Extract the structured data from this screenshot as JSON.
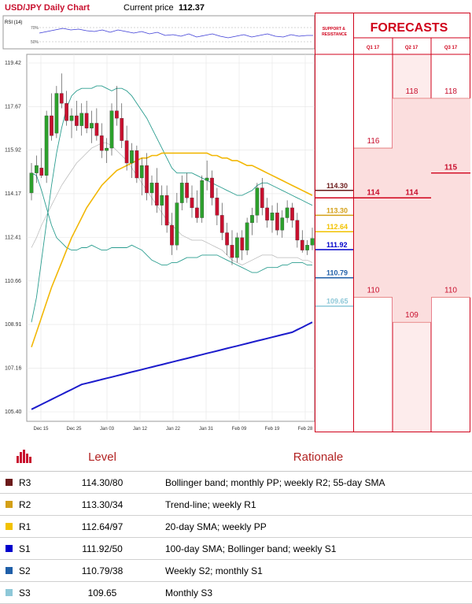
{
  "header": {
    "title": "USD/JPY Daily Chart",
    "price_label": "Current price",
    "price": "112.37"
  },
  "rsi": {
    "label": "RSI (14)",
    "levels": [
      "70%",
      "50%"
    ]
  },
  "panel": {
    "sr_title": "SUPPORT & RESISTANCE",
    "forecast_title": "FORECASTS",
    "quarters": [
      "Q1 17",
      "Q2 17",
      "Q3 17"
    ]
  },
  "colors": {
    "r3": "#6b1a1a",
    "r2": "#d4a017",
    "r1": "#f2c200",
    "s1": "#0000cc",
    "s2": "#1f5fa8",
    "s3": "#8ec8d8",
    "bull": "#2ca02c",
    "bear": "#c8102e",
    "accent": "#d0021b"
  },
  "chart_data": {
    "type": "candlestick",
    "title": "USD/JPY Daily Chart",
    "ylim": [
      105.4,
      119.42
    ],
    "y_ticks": [
      "119.42",
      "117.67",
      "115.92",
      "114.17",
      "112.41",
      "110.66",
      "108.91",
      "107.16",
      "105.40"
    ],
    "x_ticks": [
      "Dec 15",
      "Dec 25",
      "Jan 03",
      "Jan 12",
      "Jan 22",
      "Jan 31",
      "Feb 09",
      "Feb 19",
      "Feb 28"
    ],
    "candles": [
      {
        "o": 114.2,
        "h": 115.4,
        "l": 113.9,
        "c": 115.0
      },
      {
        "o": 115.0,
        "h": 115.7,
        "l": 114.6,
        "c": 115.3
      },
      {
        "o": 115.2,
        "h": 116.0,
        "l": 114.8,
        "c": 114.9
      },
      {
        "o": 114.9,
        "h": 117.5,
        "l": 114.6,
        "c": 117.3
      },
      {
        "o": 117.3,
        "h": 118.2,
        "l": 116.3,
        "c": 116.5
      },
      {
        "o": 116.6,
        "h": 118.5,
        "l": 116.4,
        "c": 118.2
      },
      {
        "o": 118.2,
        "h": 119.0,
        "l": 117.6,
        "c": 117.8
      },
      {
        "o": 117.8,
        "h": 118.3,
        "l": 116.9,
        "c": 117.1
      },
      {
        "o": 117.1,
        "h": 117.6,
        "l": 116.4,
        "c": 117.3
      },
      {
        "o": 117.3,
        "h": 117.9,
        "l": 116.7,
        "c": 116.9
      },
      {
        "o": 116.9,
        "h": 117.8,
        "l": 116.5,
        "c": 117.4
      },
      {
        "o": 117.4,
        "h": 117.9,
        "l": 116.6,
        "c": 116.8
      },
      {
        "o": 116.8,
        "h": 117.5,
        "l": 116.2,
        "c": 117.0
      },
      {
        "o": 117.0,
        "h": 117.6,
        "l": 116.3,
        "c": 116.5
      },
      {
        "o": 116.5,
        "h": 117.0,
        "l": 115.6,
        "c": 115.9
      },
      {
        "o": 115.9,
        "h": 116.4,
        "l": 115.4,
        "c": 116.0
      },
      {
        "o": 116.0,
        "h": 117.8,
        "l": 115.7,
        "c": 117.5
      },
      {
        "o": 117.5,
        "h": 118.5,
        "l": 116.9,
        "c": 117.2
      },
      {
        "o": 117.2,
        "h": 117.8,
        "l": 116.0,
        "c": 116.3
      },
      {
        "o": 116.3,
        "h": 116.9,
        "l": 115.1,
        "c": 115.4
      },
      {
        "o": 115.4,
        "h": 116.2,
        "l": 114.8,
        "c": 115.9
      },
      {
        "o": 115.9,
        "h": 116.1,
        "l": 114.6,
        "c": 114.8
      },
      {
        "o": 114.8,
        "h": 115.6,
        "l": 114.1,
        "c": 115.3
      },
      {
        "o": 115.3,
        "h": 115.8,
        "l": 113.9,
        "c": 114.2
      },
      {
        "o": 114.2,
        "h": 114.9,
        "l": 113.7,
        "c": 114.6
      },
      {
        "o": 114.6,
        "h": 115.2,
        "l": 113.4,
        "c": 113.7
      },
      {
        "o": 113.7,
        "h": 114.5,
        "l": 112.9,
        "c": 114.1
      },
      {
        "o": 114.1,
        "h": 114.5,
        "l": 112.6,
        "c": 112.9
      },
      {
        "o": 112.9,
        "h": 113.4,
        "l": 111.7,
        "c": 112.1
      },
      {
        "o": 112.1,
        "h": 114.2,
        "l": 111.9,
        "c": 113.8
      },
      {
        "o": 113.8,
        "h": 114.9,
        "l": 113.5,
        "c": 114.6
      },
      {
        "o": 114.6,
        "h": 115.0,
        "l": 113.8,
        "c": 114.0
      },
      {
        "o": 114.0,
        "h": 114.5,
        "l": 113.2,
        "c": 113.6
      },
      {
        "o": 113.6,
        "h": 114.3,
        "l": 113.0,
        "c": 113.2
      },
      {
        "o": 113.2,
        "h": 114.9,
        "l": 113.0,
        "c": 114.7
      },
      {
        "o": 114.7,
        "h": 115.5,
        "l": 114.3,
        "c": 114.8
      },
      {
        "o": 114.8,
        "h": 115.1,
        "l": 113.7,
        "c": 114.0
      },
      {
        "o": 114.0,
        "h": 114.4,
        "l": 112.9,
        "c": 113.3
      },
      {
        "o": 113.3,
        "h": 113.8,
        "l": 112.3,
        "c": 112.6
      },
      {
        "o": 112.6,
        "h": 113.0,
        "l": 111.7,
        "c": 112.1
      },
      {
        "o": 112.1,
        "h": 112.7,
        "l": 111.3,
        "c": 111.6
      },
      {
        "o": 111.6,
        "h": 112.6,
        "l": 111.4,
        "c": 112.4
      },
      {
        "o": 112.4,
        "h": 112.7,
        "l": 111.5,
        "c": 111.9
      },
      {
        "o": 111.9,
        "h": 113.2,
        "l": 111.7,
        "c": 113.0
      },
      {
        "o": 113.0,
        "h": 113.6,
        "l": 112.5,
        "c": 113.3
      },
      {
        "o": 113.3,
        "h": 114.6,
        "l": 113.0,
        "c": 114.4
      },
      {
        "o": 114.4,
        "h": 114.8,
        "l": 113.3,
        "c": 113.6
      },
      {
        "o": 113.6,
        "h": 114.0,
        "l": 112.8,
        "c": 113.1
      },
      {
        "o": 113.1,
        "h": 113.7,
        "l": 112.6,
        "c": 113.4
      },
      {
        "o": 113.4,
        "h": 113.8,
        "l": 112.5,
        "c": 112.7
      },
      {
        "o": 112.7,
        "h": 113.5,
        "l": 112.4,
        "c": 113.2
      },
      {
        "o": 113.2,
        "h": 113.9,
        "l": 113.0,
        "c": 113.6
      },
      {
        "o": 113.6,
        "h": 113.8,
        "l": 112.8,
        "c": 113.1
      },
      {
        "o": 113.1,
        "h": 113.4,
        "l": 112.0,
        "c": 112.3
      },
      {
        "o": 112.3,
        "h": 112.7,
        "l": 111.8,
        "c": 111.9
      },
      {
        "o": 111.9,
        "h": 112.3,
        "l": 111.7,
        "c": 112.1
      },
      {
        "o": 112.1,
        "h": 112.8,
        "l": 111.9,
        "c": 112.37
      }
    ],
    "series": [
      {
        "values": [
          112.0,
          112.4,
          112.9,
          113.3,
          113.7,
          114.1,
          114.5,
          114.8,
          115.1,
          115.4,
          115.6,
          115.8,
          116.0,
          116.1,
          116.2,
          116.2,
          116.1,
          115.9,
          115.7,
          115.5,
          115.2,
          114.9,
          114.6,
          114.3,
          114.0,
          113.7,
          113.4,
          113.1,
          112.9,
          112.7,
          112.5,
          112.4,
          112.3,
          112.3,
          112.3,
          112.2,
          112.1,
          112.0,
          111.9,
          111.7,
          111.5,
          111.4,
          111.3,
          111.4,
          111.5,
          111.6,
          111.7,
          111.7,
          111.7,
          111.6,
          111.6,
          111.6,
          111.6,
          111.6,
          111.5,
          111.5,
          111.4
        ]
      },
      {
        "values": [
          109.0,
          110.0,
          111.5,
          113.0,
          114.5,
          115.8,
          116.8,
          117.6,
          118.1,
          118.3,
          118.4,
          118.4,
          118.4,
          118.5,
          118.5,
          118.4,
          118.3,
          118.4,
          118.4,
          118.3,
          118.1,
          117.8,
          117.5,
          117.2,
          116.8,
          116.4,
          116.0,
          115.6,
          115.2,
          115.0,
          115.0,
          115.0,
          115.0,
          114.9,
          114.8,
          114.7,
          114.6,
          114.5,
          114.4,
          114.3,
          114.2,
          114.1,
          114.1,
          114.2,
          114.3,
          114.5,
          114.6,
          114.6,
          114.5,
          114.4,
          114.3,
          114.2,
          114.1,
          114.0,
          113.9,
          113.8,
          113.7
        ]
      },
      {
        "values": [
          115.0,
          114.9,
          114.3,
          113.6,
          112.9,
          112.4,
          112.2,
          112.0,
          111.9,
          111.9,
          112.0,
          112.0,
          112.1,
          112.0,
          111.9,
          111.9,
          112.0,
          112.0,
          112.0,
          112.0,
          112.1,
          112.0,
          111.9,
          111.7,
          111.5,
          111.4,
          111.3,
          111.3,
          111.4,
          111.4,
          111.5,
          111.6,
          111.6,
          111.6,
          111.7,
          111.7,
          111.7,
          111.7,
          111.6,
          111.5,
          111.4,
          111.3,
          111.2,
          111.1,
          111.0,
          111.0,
          111.1,
          111.2,
          111.2,
          111.2,
          111.3,
          111.3,
          111.4,
          111.4,
          111.4,
          111.3,
          111.3
        ]
      },
      {
        "values": [
          108.0,
          108.6,
          109.2,
          109.8,
          110.4,
          110.9,
          111.4,
          111.9,
          112.4,
          112.8,
          113.2,
          113.6,
          113.9,
          114.2,
          114.5,
          114.7,
          114.9,
          115.1,
          115.2,
          115.3,
          115.4,
          115.5,
          115.6,
          115.6,
          115.7,
          115.7,
          115.8,
          115.8,
          115.8,
          115.8,
          115.8,
          115.8,
          115.8,
          115.8,
          115.8,
          115.8,
          115.7,
          115.7,
          115.6,
          115.6,
          115.5,
          115.5,
          115.4,
          115.3,
          115.3,
          115.2,
          115.1,
          115.0,
          114.9,
          114.8,
          114.7,
          114.6,
          114.5,
          114.4,
          114.3,
          114.2,
          114.1
        ]
      },
      {
        "values": [
          105.5,
          105.6,
          105.7,
          105.8,
          105.9,
          106.0,
          106.1,
          106.2,
          106.3,
          106.4,
          106.5,
          106.55,
          106.6,
          106.65,
          106.7,
          106.75,
          106.8,
          106.85,
          106.9,
          106.95,
          107.0,
          107.05,
          107.1,
          107.15,
          107.2,
          107.25,
          107.3,
          107.35,
          107.4,
          107.45,
          107.5,
          107.55,
          107.6,
          107.65,
          107.7,
          107.75,
          107.8,
          107.85,
          107.9,
          107.95,
          108.0,
          108.05,
          108.1,
          108.15,
          108.2,
          108.25,
          108.3,
          108.35,
          108.4,
          108.45,
          108.5,
          108.55,
          108.6,
          108.7,
          108.8,
          108.9,
          109.0
        ]
      }
    ],
    "levels": [
      {
        "key": "r3",
        "label": "114.30",
        "value": 114.3
      },
      {
        "key": "r2",
        "label": "113.30",
        "value": 113.3
      },
      {
        "key": "r1",
        "label": "112.64",
        "value": 112.64
      },
      {
        "key": "s1",
        "label": "111.92",
        "value": 111.92
      },
      {
        "key": "s2",
        "label": "110.79",
        "value": 110.79
      },
      {
        "key": "s3",
        "label": "109.65",
        "value": 109.65
      }
    ],
    "forecasts": [
      {
        "quarter": "Q1 17",
        "high": 116,
        "median": 114,
        "low": 110
      },
      {
        "quarter": "Q2 17",
        "high": 118,
        "median": 114,
        "low": 109
      },
      {
        "quarter": "Q3 17",
        "high": 118,
        "median": 115,
        "low": 110
      }
    ]
  },
  "table": {
    "headers": [
      "Level",
      "Rationale"
    ],
    "rows": [
      {
        "key": "r3",
        "name": "R3",
        "level": "114.30/80",
        "rationale": "Bollinger band; monthly PP; weekly R2; 55-day SMA"
      },
      {
        "key": "r2",
        "name": "R2",
        "level": "113.30/34",
        "rationale": "Trend-line; weekly R1"
      },
      {
        "key": "r1",
        "name": "R1",
        "level": "112.64/97",
        "rationale": "20-day SMA; weekly PP"
      },
      {
        "key": "s1",
        "name": "S1",
        "level": "111.92/50",
        "rationale": "100-day SMA; Bollinger band; weekly S1"
      },
      {
        "key": "s2",
        "name": "S2",
        "level": "110.79/38",
        "rationale": "Weekly S2; monthly S1"
      },
      {
        "key": "s3",
        "name": "S3",
        "level": "109.65",
        "rationale": "Monthly S3"
      }
    ]
  }
}
